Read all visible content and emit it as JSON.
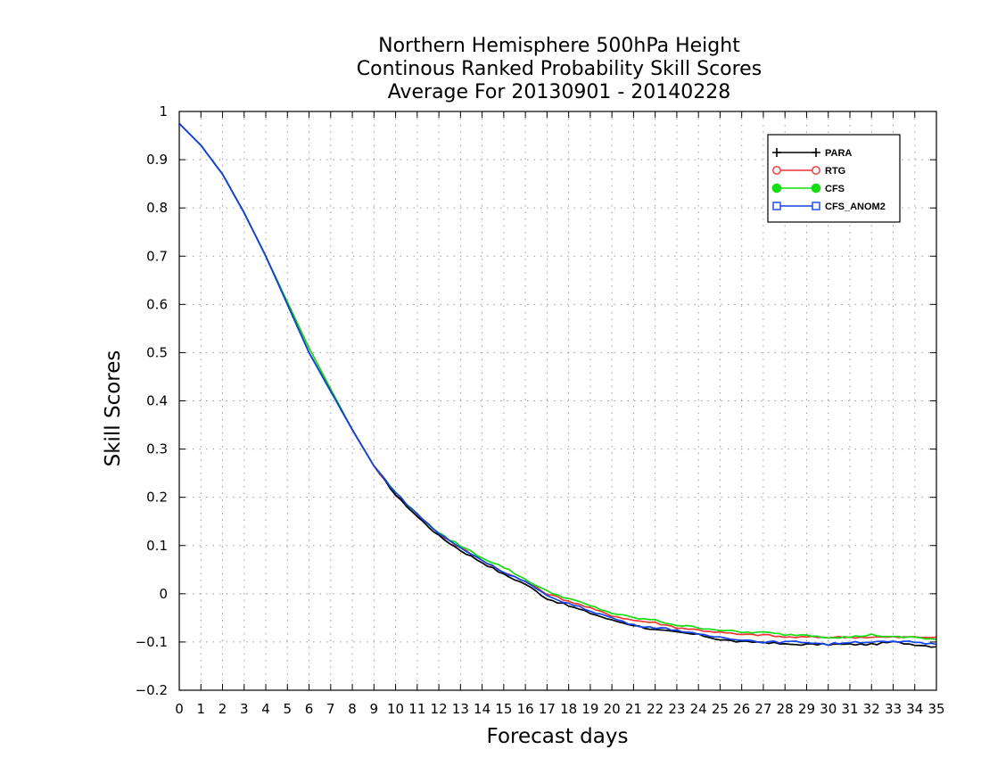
{
  "chart_data": {
    "type": "line",
    "title_lines": [
      "Northern Hemisphere 500hPa Height",
      "Continous Ranked Probability Skill Scores",
      "Average For 20130901 - 20140228"
    ],
    "xlabel": "Forecast days",
    "ylabel": "Skill Scores",
    "xlim": [
      0,
      35
    ],
    "ylim": [
      -0.2,
      1
    ],
    "x_ticks": [
      0,
      1,
      2,
      3,
      4,
      5,
      6,
      7,
      8,
      9,
      10,
      11,
      12,
      13,
      14,
      15,
      16,
      17,
      18,
      19,
      20,
      21,
      22,
      23,
      24,
      25,
      26,
      27,
      28,
      29,
      30,
      31,
      32,
      33,
      34,
      35
    ],
    "y_ticks": [
      -0.2,
      -0.1,
      0,
      0.1,
      0.2,
      0.3,
      0.4,
      0.5,
      0.6,
      0.7,
      0.8,
      0.9,
      1
    ],
    "y_tick_labels": [
      "−0.2",
      "−0.1",
      "0",
      "0.1",
      "0.2",
      "0.3",
      "0.4",
      "0.5",
      "0.6",
      "0.7",
      "0.8",
      "0.9",
      "1"
    ],
    "grid": true,
    "legend_position": "top-right",
    "x": [
      0,
      1,
      2,
      3,
      4,
      5,
      6,
      7,
      8,
      9,
      10,
      11,
      12,
      13,
      14,
      15,
      16,
      17,
      18,
      19,
      20,
      21,
      22,
      23,
      24,
      25,
      26,
      27,
      28,
      29,
      30,
      31,
      32,
      33,
      34,
      35
    ],
    "series": [
      {
        "name": "PARA",
        "color": "#000000",
        "marker": "plus",
        "values": [
          0.975,
          0.93,
          0.87,
          0.79,
          0.7,
          0.6,
          0.5,
          0.42,
          0.34,
          0.265,
          0.205,
          0.16,
          0.12,
          0.09,
          0.065,
          0.04,
          0.02,
          -0.01,
          -0.025,
          -0.04,
          -0.055,
          -0.065,
          -0.075,
          -0.08,
          -0.085,
          -0.095,
          -0.1,
          -0.1,
          -0.105,
          -0.105,
          -0.105,
          -0.105,
          -0.105,
          -0.1,
          -0.105,
          -0.11
        ]
      },
      {
        "name": "RTG",
        "color": "#ee3333",
        "marker": "circle",
        "values": [
          0.975,
          0.93,
          0.87,
          0.79,
          0.7,
          0.6,
          0.5,
          0.42,
          0.34,
          0.265,
          0.205,
          0.165,
          0.125,
          0.095,
          0.07,
          0.045,
          0.025,
          0,
          -0.015,
          -0.03,
          -0.045,
          -0.055,
          -0.06,
          -0.07,
          -0.075,
          -0.08,
          -0.085,
          -0.085,
          -0.09,
          -0.09,
          -0.09,
          -0.09,
          -0.09,
          -0.09,
          -0.09,
          -0.09
        ]
      },
      {
        "name": "CFS",
        "color": "#11dd11",
        "marker": "dot",
        "values": [
          0.975,
          0.93,
          0.87,
          0.79,
          0.7,
          0.605,
          0.51,
          0.425,
          0.34,
          0.265,
          0.21,
          0.165,
          0.125,
          0.1,
          0.075,
          0.055,
          0.03,
          0.005,
          -0.01,
          -0.025,
          -0.04,
          -0.05,
          -0.055,
          -0.065,
          -0.07,
          -0.075,
          -0.08,
          -0.08,
          -0.085,
          -0.085,
          -0.09,
          -0.09,
          -0.085,
          -0.09,
          -0.09,
          -0.095
        ]
      },
      {
        "name": "CFS_ANOM2",
        "color": "#1144ee",
        "marker": "square",
        "values": [
          0.975,
          0.93,
          0.87,
          0.79,
          0.7,
          0.6,
          0.5,
          0.42,
          0.34,
          0.265,
          0.21,
          0.165,
          0.125,
          0.095,
          0.07,
          0.045,
          0.025,
          -0.005,
          -0.02,
          -0.035,
          -0.05,
          -0.065,
          -0.07,
          -0.075,
          -0.085,
          -0.09,
          -0.095,
          -0.1,
          -0.1,
          -0.1,
          -0.105,
          -0.1,
          -0.1,
          -0.1,
          -0.1,
          -0.105
        ]
      }
    ]
  }
}
